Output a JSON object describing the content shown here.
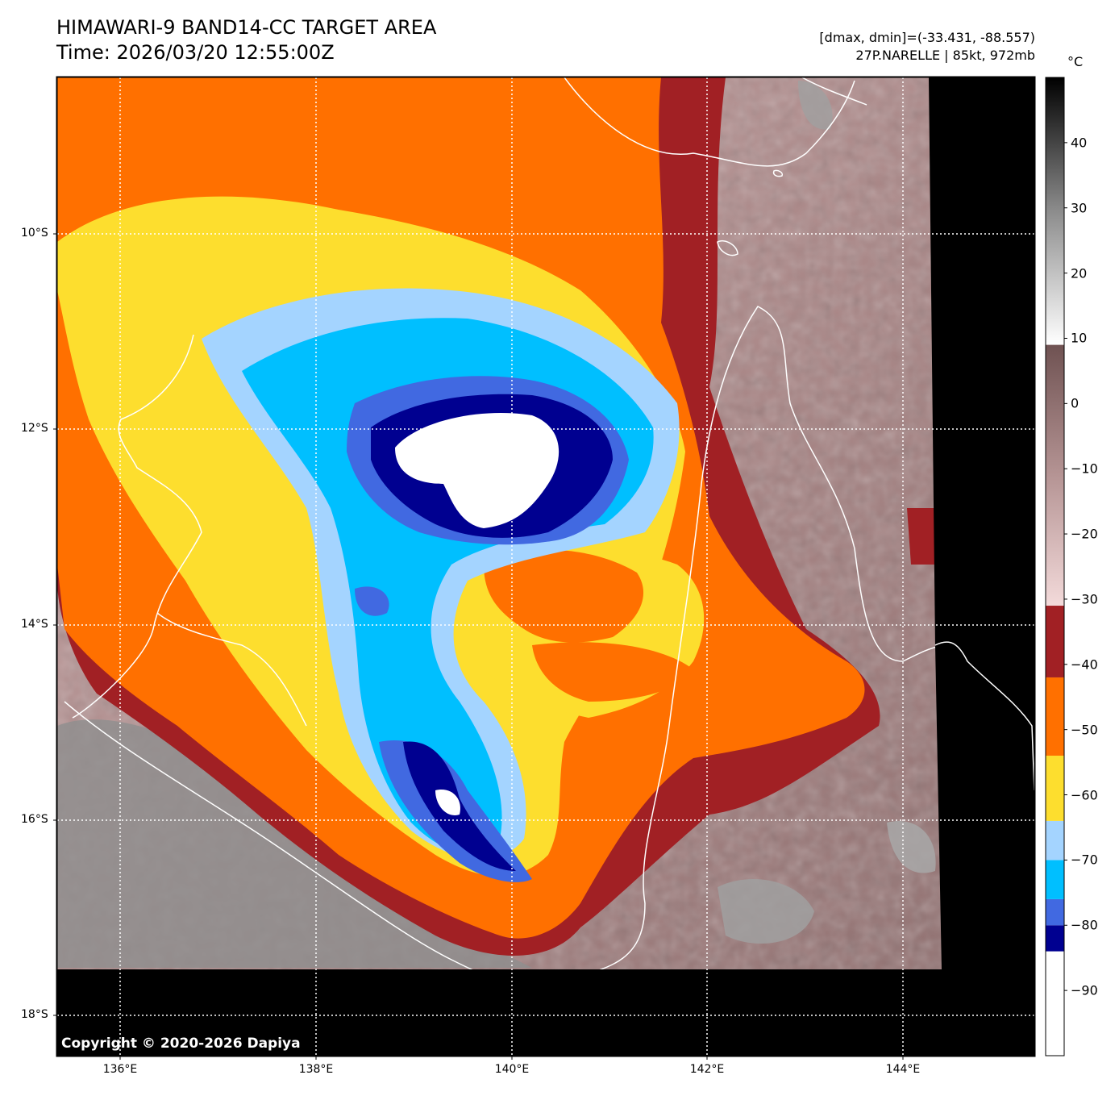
{
  "title": {
    "line1": "HIMAWARI-9 BAND14-CC TARGET AREA",
    "line2": "Time: 2026/03/20 12:55:00Z"
  },
  "info": {
    "range": "[dmax, dmin]=(-33.431, -88.557)",
    "storm": "27P.NARELLE | 85kt, 972mb"
  },
  "colorbar": {
    "unit": "°C",
    "ticks": [
      "40",
      "30",
      "20",
      "10",
      "0",
      "−10",
      "−20",
      "−30",
      "−40",
      "−50",
      "−60",
      "−70",
      "−80",
      "−90"
    ],
    "bands": [
      {
        "from": -100,
        "to": -84,
        "color": "#ffffff"
      },
      {
        "from": -84,
        "to": -80,
        "color": "#000090"
      },
      {
        "from": -80,
        "to": -76,
        "color": "#4169e1"
      },
      {
        "from": -76,
        "to": -70,
        "color": "#00bfff"
      },
      {
        "from": -70,
        "to": -64,
        "color": "#a4d4ff"
      },
      {
        "from": -64,
        "to": -54,
        "color": "#fdde2e"
      },
      {
        "from": -54,
        "to": -42,
        "color": "#ff7000"
      },
      {
        "from": -42,
        "to": -31,
        "color": "#a12024"
      },
      {
        "from": -31,
        "to": 9,
        "gradient": [
          "#f3dada",
          "#b59494",
          "#6f5252"
        ]
      },
      {
        "from": 9,
        "to": 50,
        "gradient": [
          "#ffffff",
          "#8c8c8c",
          "#000000"
        ]
      }
    ]
  },
  "axes": {
    "lat_labels": [
      "10°S",
      "12°S",
      "14°S",
      "16°S",
      "18°S"
    ],
    "lon_labels": [
      "136°E",
      "138°E",
      "140°E",
      "142°E",
      "144°E"
    ]
  },
  "copyright": "Copyright © 2020-2026 Dapiya"
}
